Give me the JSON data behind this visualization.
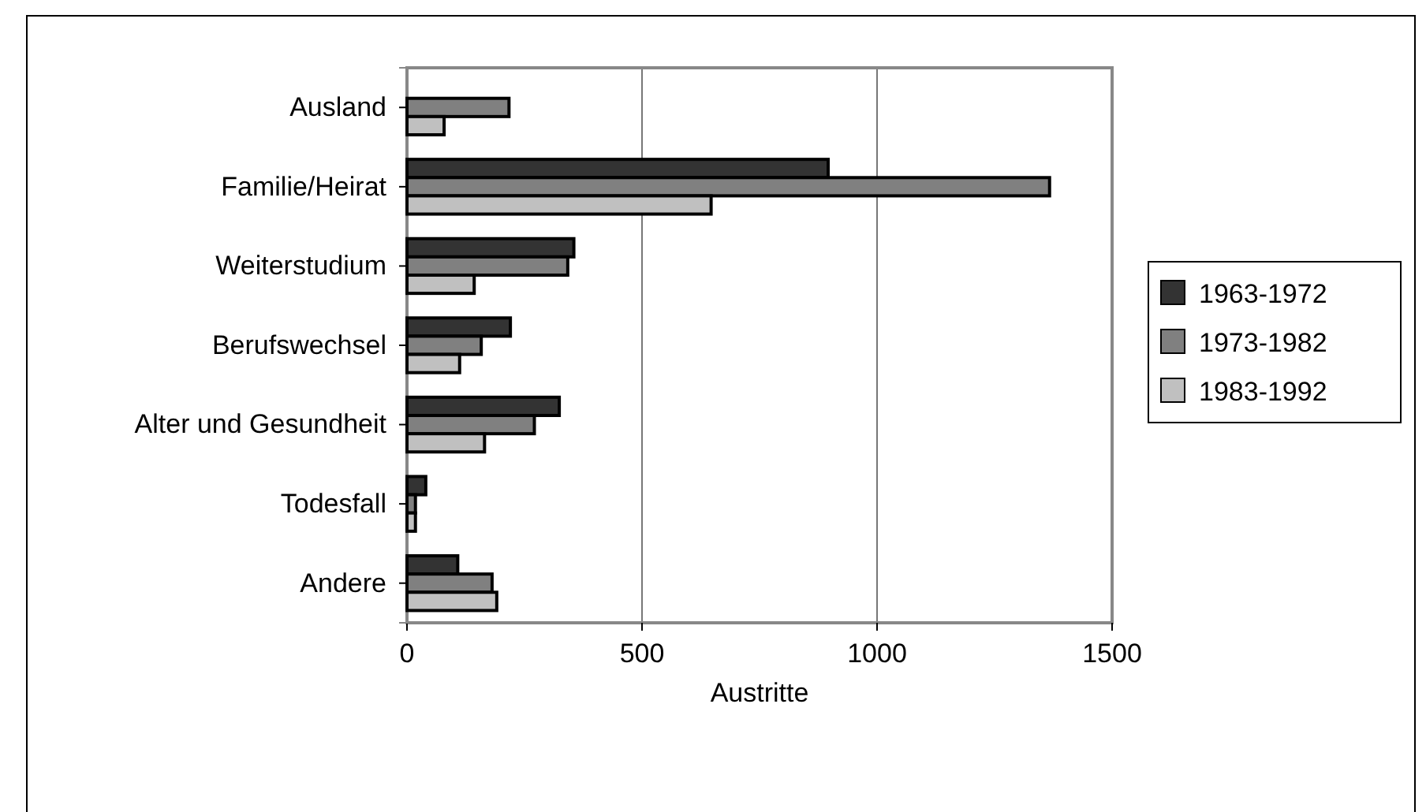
{
  "chart_data": {
    "type": "bar",
    "orientation": "horizontal",
    "xlabel": "Austritte",
    "categories": [
      "Ausland",
      "Familie/Heirat",
      "Weiterstudium",
      "Berufswechsel",
      "Alter und Gesundheit",
      "Todesfall",
      "Andere"
    ],
    "series": [
      {
        "name": "1963-1972",
        "color": "#333333",
        "values": [
          null,
          896,
          355,
          220,
          324,
          40,
          108
        ]
      },
      {
        "name": "1973-1982",
        "color": "#808080",
        "values": [
          217,
          1367,
          342,
          158,
          271,
          18,
          181
        ]
      },
      {
        "name": "1983-1992",
        "color": "#c0c0c0",
        "values": [
          79,
          647,
          143,
          112,
          165,
          18,
          191
        ]
      }
    ],
    "xlim": [
      0,
      1500
    ],
    "xticks": [
      0,
      500,
      1000,
      1500
    ],
    "grid": "x",
    "legend": "right"
  }
}
